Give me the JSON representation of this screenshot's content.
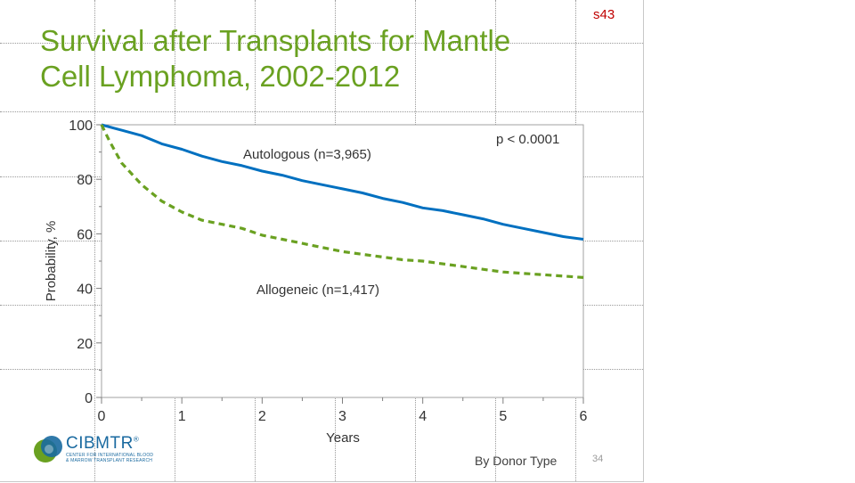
{
  "slide": {
    "code": "s43",
    "title_lines": [
      "Survival  after Transplants  for Mantle",
      "Cell Lymphoma, 2002-2012"
    ],
    "footer_note": "By Donor Type",
    "page_number": "34",
    "logo": {
      "word": "CIBMTR",
      "trademark": "®",
      "subtitle_lines": [
        "CENTER FOR INTERNATIONAL BLOOD",
        "& MARROW TRANSPLANT RESEARCH"
      ]
    }
  },
  "colors": {
    "title": "#6aa121",
    "autologous": "#0070c0",
    "allogeneic": "#6aa121",
    "slide_code": "#c00000"
  },
  "chart_data": {
    "type": "line",
    "title": "",
    "xlabel": "Years",
    "ylabel": "Probability, %",
    "xlim": [
      0,
      6
    ],
    "ylim": [
      0,
      100
    ],
    "x_ticks": [
      "0",
      "1",
      "2",
      "3",
      "4",
      "5",
      "6"
    ],
    "y_ticks": [
      "0",
      "20",
      "40",
      "60",
      "80",
      "100"
    ],
    "grid": false,
    "annotation": "p < 0.0001",
    "series": [
      {
        "name": "Autologous (n=3,965)",
        "style": "solid",
        "color": "#0070c0",
        "x": [
          0,
          0.25,
          0.5,
          0.75,
          1,
          1.25,
          1.5,
          1.75,
          2,
          2.25,
          2.5,
          2.75,
          3,
          3.25,
          3.5,
          3.75,
          4,
          4.25,
          4.5,
          4.75,
          5,
          5.25,
          5.5,
          5.75,
          6
        ],
        "y": [
          100,
          98,
          96,
          93,
          91,
          88.5,
          86.5,
          85,
          83,
          81.5,
          79.5,
          78,
          76.5,
          75,
          73,
          71.5,
          69.5,
          68.5,
          67,
          65.5,
          63.5,
          62,
          60.5,
          59,
          58
        ]
      },
      {
        "name": "Allogeneic (n=1,417)",
        "style": "dashed",
        "color": "#6aa121",
        "x": [
          0,
          0.1,
          0.25,
          0.5,
          0.75,
          1,
          1.25,
          1.5,
          1.75,
          2,
          2.25,
          2.5,
          2.75,
          3,
          3.25,
          3.5,
          3.75,
          4,
          4.25,
          4.5,
          4.75,
          5,
          5.25,
          5.5,
          5.75,
          6
        ],
        "y": [
          100,
          94,
          86,
          78,
          72,
          68,
          65,
          63.5,
          62,
          59.5,
          58,
          56.5,
          55,
          53.5,
          52.5,
          51.5,
          50.5,
          50,
          49,
          48,
          47,
          46,
          45.5,
          45,
          44.5,
          44
        ]
      }
    ]
  }
}
